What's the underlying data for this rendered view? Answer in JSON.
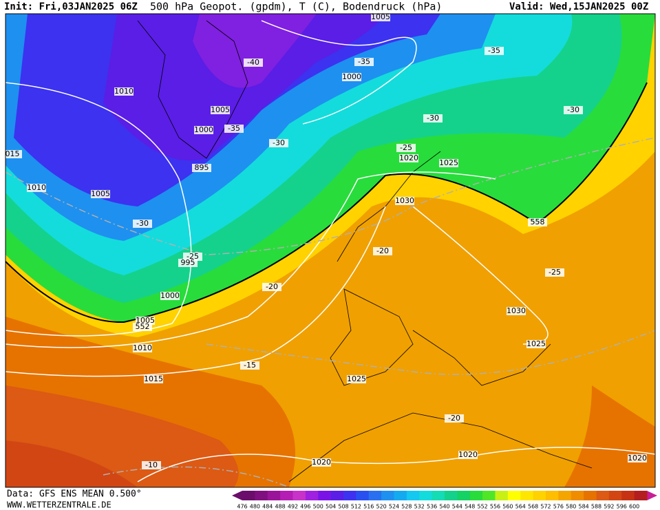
{
  "header": {
    "init": "Init: Fri,03JAN2025 06Z",
    "title": "500 hPa Geopot. (gpdm), T (C), Bodendruck (hPa)",
    "valid": "Valid: Wed,15JAN2025 00Z"
  },
  "footer": {
    "data": "Data: GFS ENS MEAN 0.500°",
    "site": "WWW.WETTERZENTRALE.DE"
  },
  "map": {
    "labels": [
      "1005",
      "-35",
      "1000",
      "-40",
      "1010",
      "1005",
      "1000",
      "-35",
      "-30",
      "-35",
      "-30",
      "-30",
      "-25",
      "1020",
      "1025",
      "015",
      "895",
      "1010",
      "1005",
      "-30",
      "1030",
      "558",
      "-20",
      "-25",
      "995",
      "-25",
      "-20",
      "1000",
      "1030",
      "1005",
      "552",
      "1025",
      "1010",
      "-15",
      "1015",
      "1025",
      "-20",
      "1020",
      "1020",
      "1020",
      "-10"
    ]
  },
  "colorbar": {
    "values": [
      476,
      480,
      484,
      488,
      492,
      496,
      500,
      504,
      508,
      512,
      516,
      520,
      524,
      528,
      532,
      536,
      540,
      544,
      548,
      552,
      556,
      560,
      564,
      568,
      572,
      576,
      580,
      584,
      588,
      592,
      596,
      600
    ],
    "colors": [
      "#6b0e6b",
      "#80107f",
      "#9a149a",
      "#b41eb4",
      "#c832c8",
      "#a020e0",
      "#7a14e6",
      "#5a1ee6",
      "#3c32f0",
      "#2850f0",
      "#2870f0",
      "#1e90f0",
      "#14aaf0",
      "#14c8f0",
      "#14dcdc",
      "#14dcb4",
      "#14d28c",
      "#14d264",
      "#28dc3c",
      "#50e628",
      "#c8f014",
      "#ffff00",
      "#ffe600",
      "#ffd200",
      "#ffbe00",
      "#f5a500",
      "#f08c00",
      "#e67300",
      "#dc5a14",
      "#d24614",
      "#c83214",
      "#b41e1e"
    ]
  }
}
